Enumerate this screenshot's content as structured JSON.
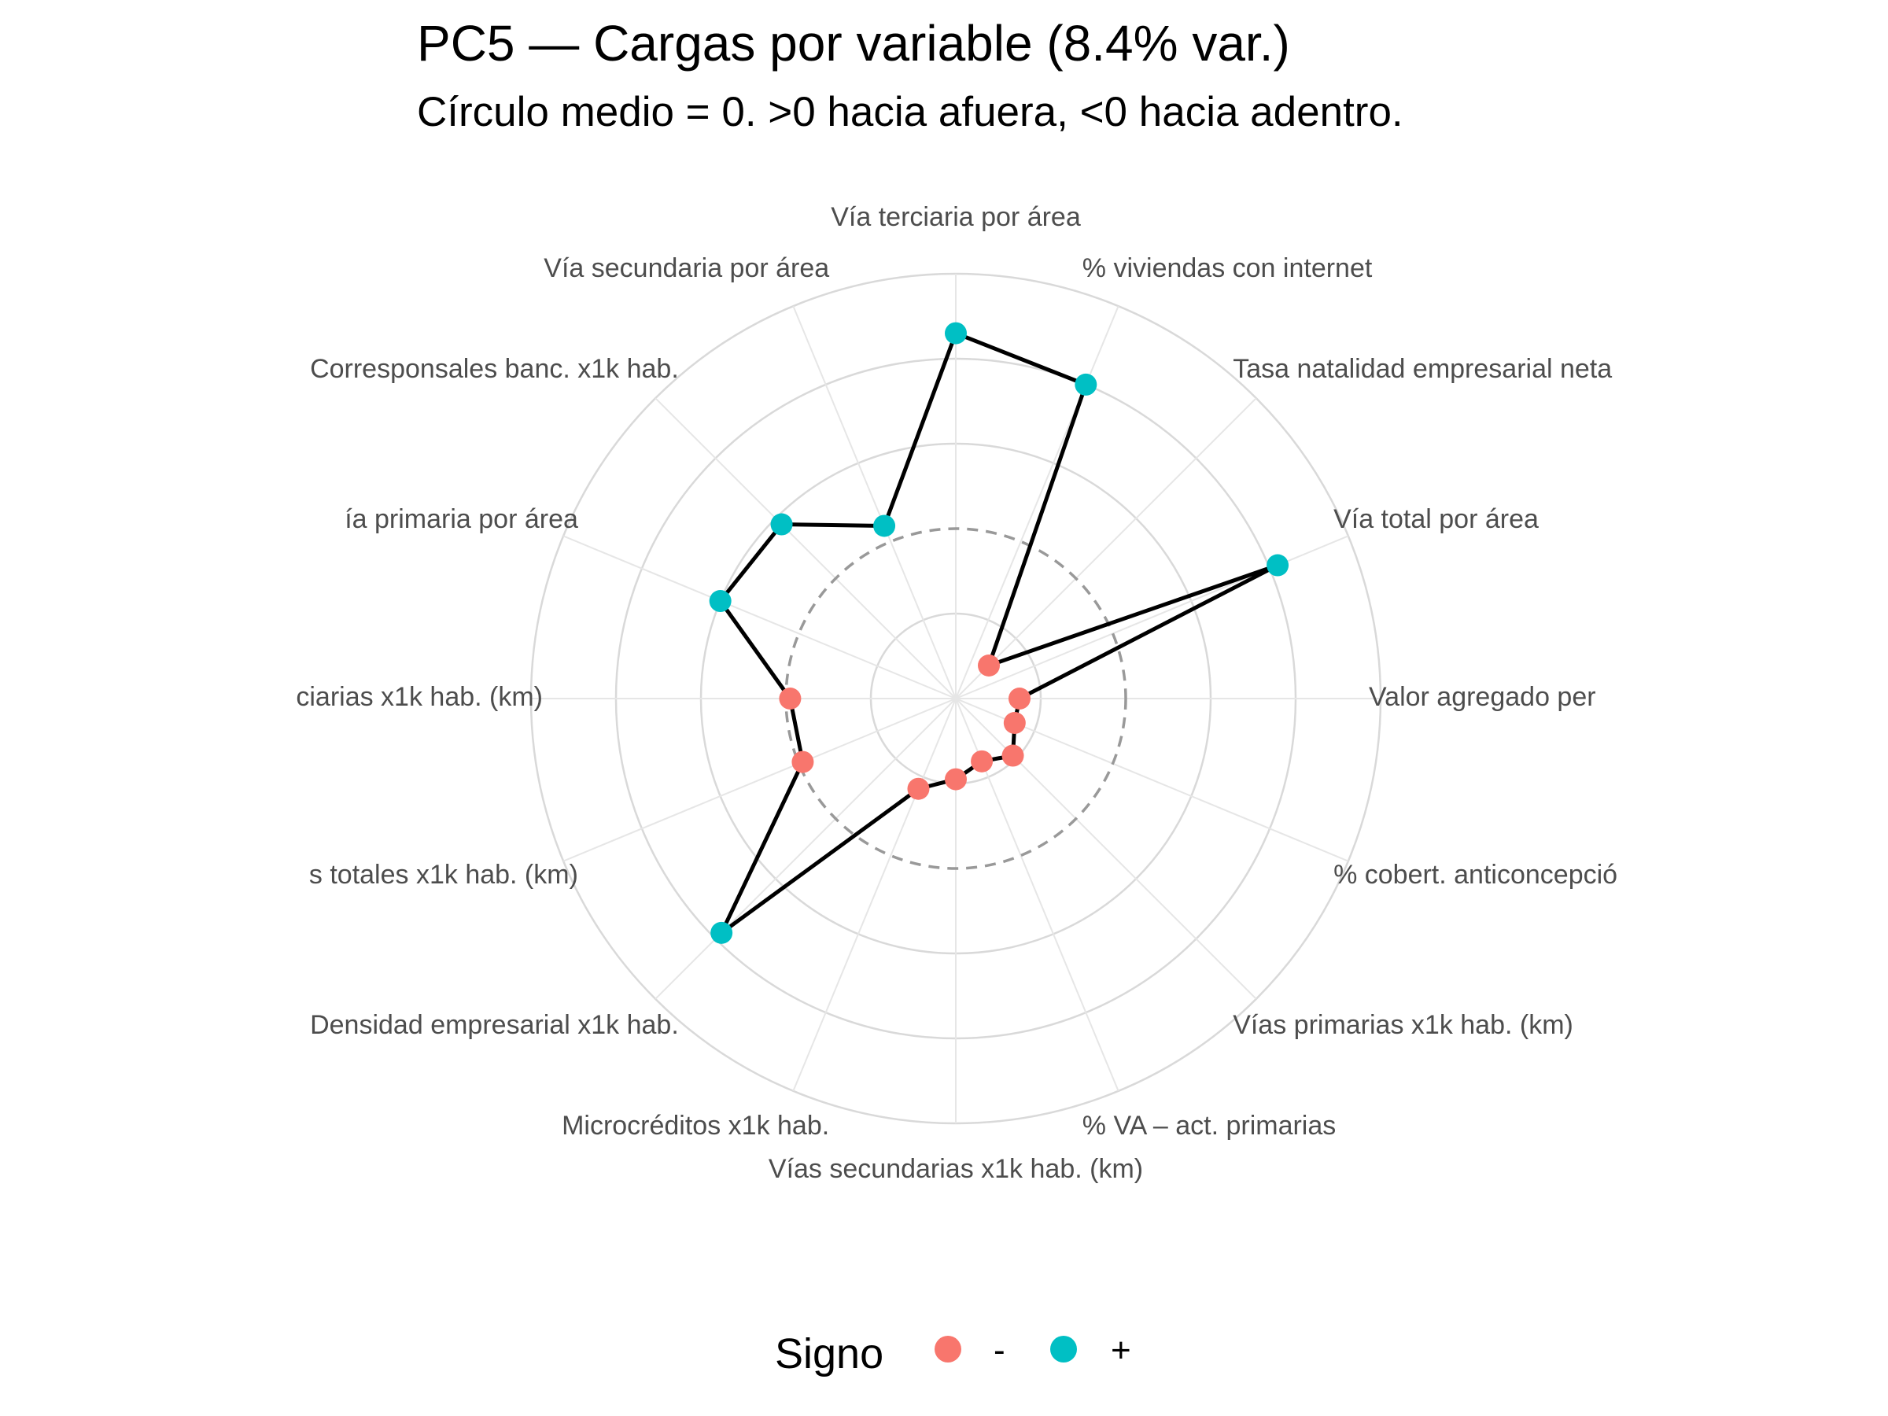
{
  "chart_data": {
    "type": "radar",
    "title": "PC5 — Cargas por variable (8.4% var.)",
    "subtitle": "Círculo medio = 0. >0 hacia afuera, <0 hacia adentro.",
    "reference_circle": "0",
    "legend": {
      "title": "Signo",
      "placement": "bottom",
      "items": [
        {
          "label": "-",
          "color": "#F8766D"
        },
        {
          "label": "+",
          "color": "#00BFC4"
        }
      ]
    },
    "colors": {
      "negative": "#F8766D",
      "positive": "#00BFC4",
      "line": "#000000",
      "grid": "#d9d9d9",
      "reference": "#999999"
    },
    "scale_max": 5,
    "reference_value": 2,
    "categories": [
      "Vía terciaria por área",
      "% viviendas con internet",
      "Tasa natalidad empresarial neta",
      "Vía total por área",
      "Valor agregado per",
      "% cobert. anticoncepció",
      "Vías primarias x1k hab. (km)",
      "% VA – act. primarias",
      "Vías secundarias x1k hab. (km)",
      "Microcréditos x1k hab.",
      "Densidad empresarial x1k hab.",
      "s totales x1k hab. (km)",
      "ciarias x1k hab. (km)",
      "ía primaria por área",
      "Corresponsales banc. x1k hab.",
      "Vía secundaria por área"
    ],
    "values": [
      4.3,
      4.0,
      0.55,
      4.1,
      0.75,
      0.75,
      0.95,
      0.8,
      0.95,
      1.15,
      3.9,
      1.95,
      1.95,
      3.0,
      2.9,
      2.2
    ],
    "signs": [
      "+",
      "+",
      "-",
      "+",
      "-",
      "-",
      "-",
      "-",
      "-",
      "-",
      "+",
      "-",
      "-",
      "+",
      "+",
      "+"
    ],
    "grid": true
  }
}
